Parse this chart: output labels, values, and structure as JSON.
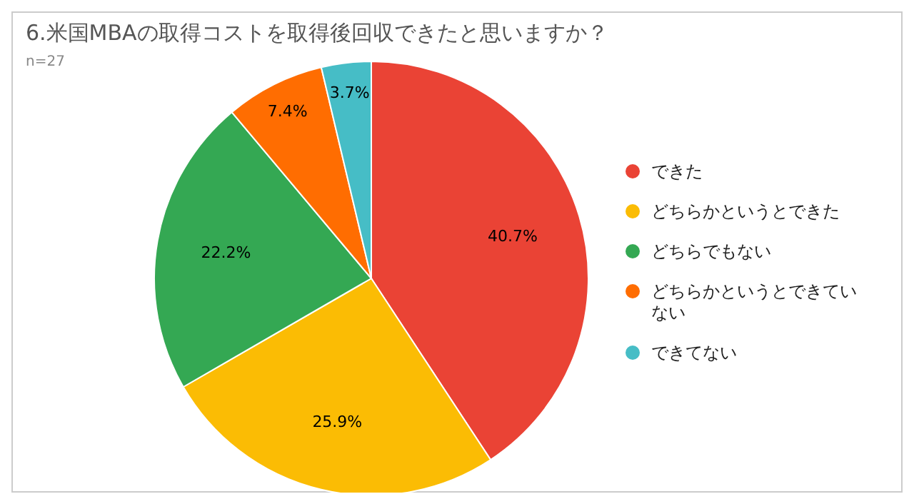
{
  "chart_data": {
    "type": "pie",
    "title": "6.米国MBAの取得コストを取得後回収できたと思いますか？",
    "subtitle": "n=27",
    "categories": [
      "できた",
      "どちらかというとできた",
      "どちらでもない",
      "どちらかというとできていない",
      "できてない"
    ],
    "values": [
      40.7,
      25.9,
      22.2,
      7.4,
      3.7
    ],
    "colors": [
      "#ea4335",
      "#fbbc04",
      "#34a853",
      "#ff6d01",
      "#46bdc6"
    ],
    "value_labels": [
      "40.7%",
      "25.9%",
      "22.2%",
      "7.4%",
      "3.7%"
    ],
    "legend": "right"
  }
}
